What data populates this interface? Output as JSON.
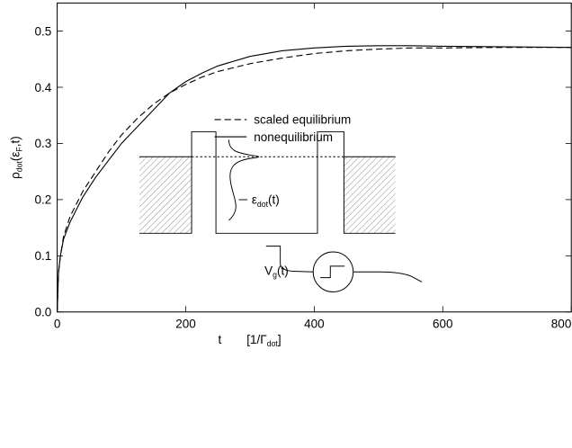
{
  "chart_data": {
    "type": "line",
    "x_label": [
      "t",
      "[1/Γ",
      "dot",
      "]"
    ],
    "y_label": [
      "ρ",
      "dot",
      "(ε",
      "F",
      ",t)"
    ],
    "x": [
      0,
      2,
      5,
      10,
      20,
      40,
      60,
      80,
      100,
      125,
      150,
      175,
      200,
      225,
      250,
      300,
      350,
      400,
      450,
      500,
      550,
      600,
      700,
      800
    ],
    "series": [
      {
        "name": "scaled equilibrium",
        "color": "#000000",
        "dash": true,
        "values": [
          0.0,
          0.07,
          0.1,
          0.135,
          0.17,
          0.215,
          0.25,
          0.285,
          0.315,
          0.345,
          0.37,
          0.39,
          0.405,
          0.418,
          0.428,
          0.442,
          0.452,
          0.46,
          0.465,
          0.468,
          0.47,
          0.47,
          0.471,
          0.471
        ]
      },
      {
        "name": "nonequilibrium",
        "color": "#000000",
        "dash": false,
        "values": [
          0.0,
          0.07,
          0.1,
          0.13,
          0.16,
          0.205,
          0.24,
          0.27,
          0.3,
          0.33,
          0.36,
          0.39,
          0.41,
          0.425,
          0.438,
          0.455,
          0.465,
          0.47,
          0.473,
          0.474,
          0.474,
          0.473,
          0.472,
          0.471
        ]
      }
    ],
    "xlim": [
      0,
      800
    ],
    "xticks": [
      0,
      200,
      400,
      600,
      800
    ],
    "ylim": [
      0,
      0.55
    ],
    "yticks": [
      {
        "value": 0,
        "label": "0.0"
      },
      {
        "value": 0.1,
        "label": "0.1"
      },
      {
        "value": 0.2,
        "label": "0.2"
      },
      {
        "value": 0.3,
        "label": "0.3"
      },
      {
        "value": 0.4,
        "label": "0.4"
      },
      {
        "value": 0.5,
        "label": "0.5"
      }
    ],
    "inset_labels": {
      "level": [
        "ε",
        "dot",
        "(t)"
      ],
      "gate": [
        "V",
        "g",
        "(t)"
      ]
    }
  }
}
